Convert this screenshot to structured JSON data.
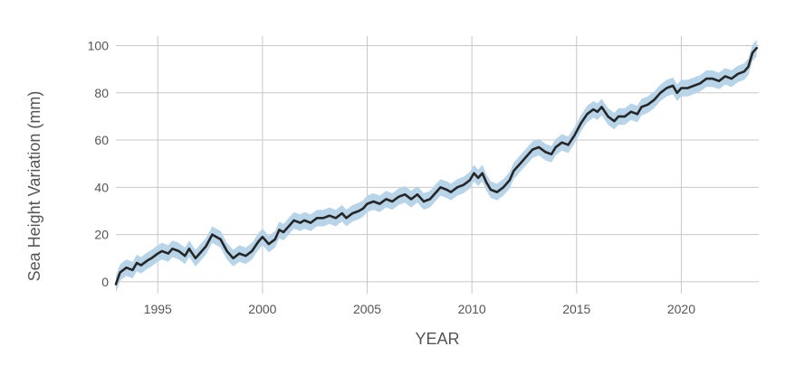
{
  "chart_data": {
    "type": "line",
    "xlabel": "YEAR",
    "ylabel": "Sea Height Variation (mm)",
    "xlim": [
      1993.0,
      2023.7
    ],
    "ylim": [
      -5,
      104
    ],
    "x_ticks": [
      1995,
      2000,
      2005,
      2010,
      2015,
      2020
    ],
    "y_ticks": [
      0,
      20,
      40,
      60,
      80,
      100
    ],
    "grid": true,
    "legend": "none",
    "band_halfwidth": 3.5,
    "colors": {
      "line": "#262626",
      "band": "#b8d4e8",
      "grid": "#c8c8c8",
      "text": "#555555"
    },
    "series": [
      {
        "x": [
          1993.0,
          1993.2,
          1993.5,
          1993.8,
          1994.0,
          1994.2,
          1994.5,
          1994.7,
          1995.0,
          1995.2,
          1995.5,
          1995.7,
          1996.0,
          1996.3,
          1996.5,
          1996.8,
          1997.0,
          1997.3,
          1997.6,
          1997.8,
          1998.0,
          1998.3,
          1998.6,
          1998.9,
          1999.2,
          1999.5,
          1999.8,
          2000.0,
          2000.3,
          2000.6,
          2000.8,
          2001.0,
          2001.3,
          2001.5,
          2001.8,
          2002.0,
          2002.3,
          2002.6,
          2002.9,
          2003.2,
          2003.5,
          2003.8,
          2004.0,
          2004.3,
          2004.6,
          2004.8,
          2005.0,
          2005.3,
          2005.6,
          2005.9,
          2006.2,
          2006.5,
          2006.8,
          2007.1,
          2007.4,
          2007.7,
          2008.0,
          2008.3,
          2008.5,
          2008.8,
          2009.0,
          2009.3,
          2009.6,
          2009.9,
          2010.1,
          2010.3,
          2010.5,
          2010.7,
          2010.9,
          2011.2,
          2011.5,
          2011.8,
          2012.0,
          2012.3,
          2012.6,
          2012.9,
          2013.2,
          2013.5,
          2013.8,
          2014.0,
          2014.3,
          2014.6,
          2014.9,
          2015.2,
          2015.5,
          2015.8,
          2016.0,
          2016.2,
          2016.5,
          2016.8,
          2017.0,
          2017.3,
          2017.6,
          2017.9,
          2018.1,
          2018.4,
          2018.7,
          2019.0,
          2019.3,
          2019.6,
          2019.8,
          2020.0,
          2020.3,
          2020.6,
          2020.9,
          2021.2,
          2021.5,
          2021.8,
          2022.1,
          2022.4,
          2022.7,
          2023.0,
          2023.2,
          2023.4,
          2023.6
        ],
        "y": [
          -1,
          4,
          6,
          5,
          8,
          7,
          9,
          10,
          12,
          13,
          12,
          14,
          13,
          11,
          14,
          10,
          12,
          15,
          20,
          19,
          18,
          13,
          10,
          12,
          11,
          13,
          17,
          19,
          16,
          18,
          22,
          21,
          24,
          26,
          25,
          26,
          25,
          27,
          27,
          28,
          27,
          29,
          27,
          29,
          30,
          31,
          33,
          34,
          33,
          35,
          34,
          36,
          37,
          35,
          37,
          34,
          35,
          38,
          40,
          39,
          38,
          40,
          41,
          43,
          46,
          44,
          46,
          42,
          39,
          38,
          40,
          43,
          47,
          50,
          53,
          56,
          57,
          55,
          54,
          57,
          59,
          58,
          62,
          67,
          71,
          73,
          72,
          74,
          70,
          68,
          70,
          70,
          72,
          71,
          74,
          75,
          77,
          80,
          82,
          83,
          80,
          82,
          82,
          83,
          84,
          86,
          86,
          85,
          87,
          86,
          88,
          89,
          91,
          97,
          99
        ]
      }
    ]
  }
}
